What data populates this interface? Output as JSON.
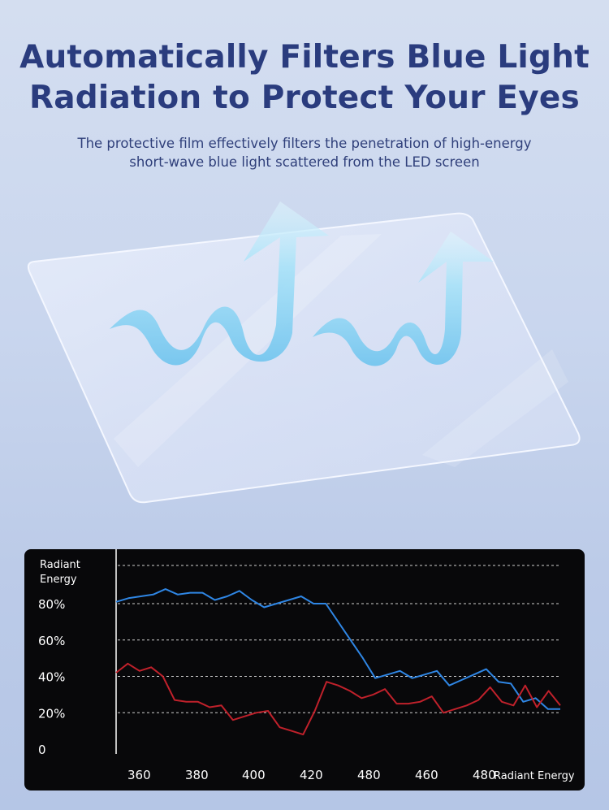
{
  "headline": {
    "line1": "Automatically Filters Blue Light",
    "line2": "Radiation to Protect Your Eyes"
  },
  "subtitle": {
    "line1": "The protective film effectively filters the penetration of high-energy",
    "line2": "short-wave blue light scattered from the LED screen"
  },
  "illustration": {
    "subject": "protective screen film with upward wave arrows",
    "icons": [
      "wave-arrow-icon",
      "wave-arrow-icon"
    ]
  },
  "colors": {
    "headline": "#2a3c7e",
    "background": "#c9d6ee",
    "chart_background": "#08080a",
    "series_blue": "#2f86e4",
    "series_red": "#c0212b"
  },
  "chart_data": {
    "type": "line",
    "ylabel_line1": "Radiant",
    "ylabel_line2": "Energy",
    "xlabel": "Radiant Energy",
    "x_ticks": [
      "360",
      "380",
      "400",
      "420",
      "480",
      "460",
      "480"
    ],
    "y_ticks": [
      "80%",
      "60%",
      "40%",
      "20%",
      "0"
    ],
    "ylim": [
      0,
      100
    ],
    "grid": true,
    "series": [
      {
        "color": "#2f86e4",
        "values": [
          81,
          83,
          84,
          85,
          88,
          85,
          86,
          86,
          82,
          84,
          87,
          82,
          78,
          80,
          82,
          84,
          80,
          80,
          70,
          60,
          50,
          39,
          41,
          43,
          39,
          41,
          43,
          35,
          38,
          41,
          44,
          37,
          36,
          26,
          28,
          22,
          22
        ]
      },
      {
        "color": "#c0212b",
        "values": [
          42,
          47,
          43,
          45,
          40,
          27,
          26,
          26,
          23,
          24,
          16,
          18,
          20,
          21,
          12,
          10,
          8,
          21,
          37,
          35,
          32,
          28,
          30,
          33,
          25,
          25,
          26,
          29,
          20,
          22,
          24,
          27,
          34,
          26,
          24,
          35,
          23,
          32,
          24
        ]
      }
    ]
  }
}
